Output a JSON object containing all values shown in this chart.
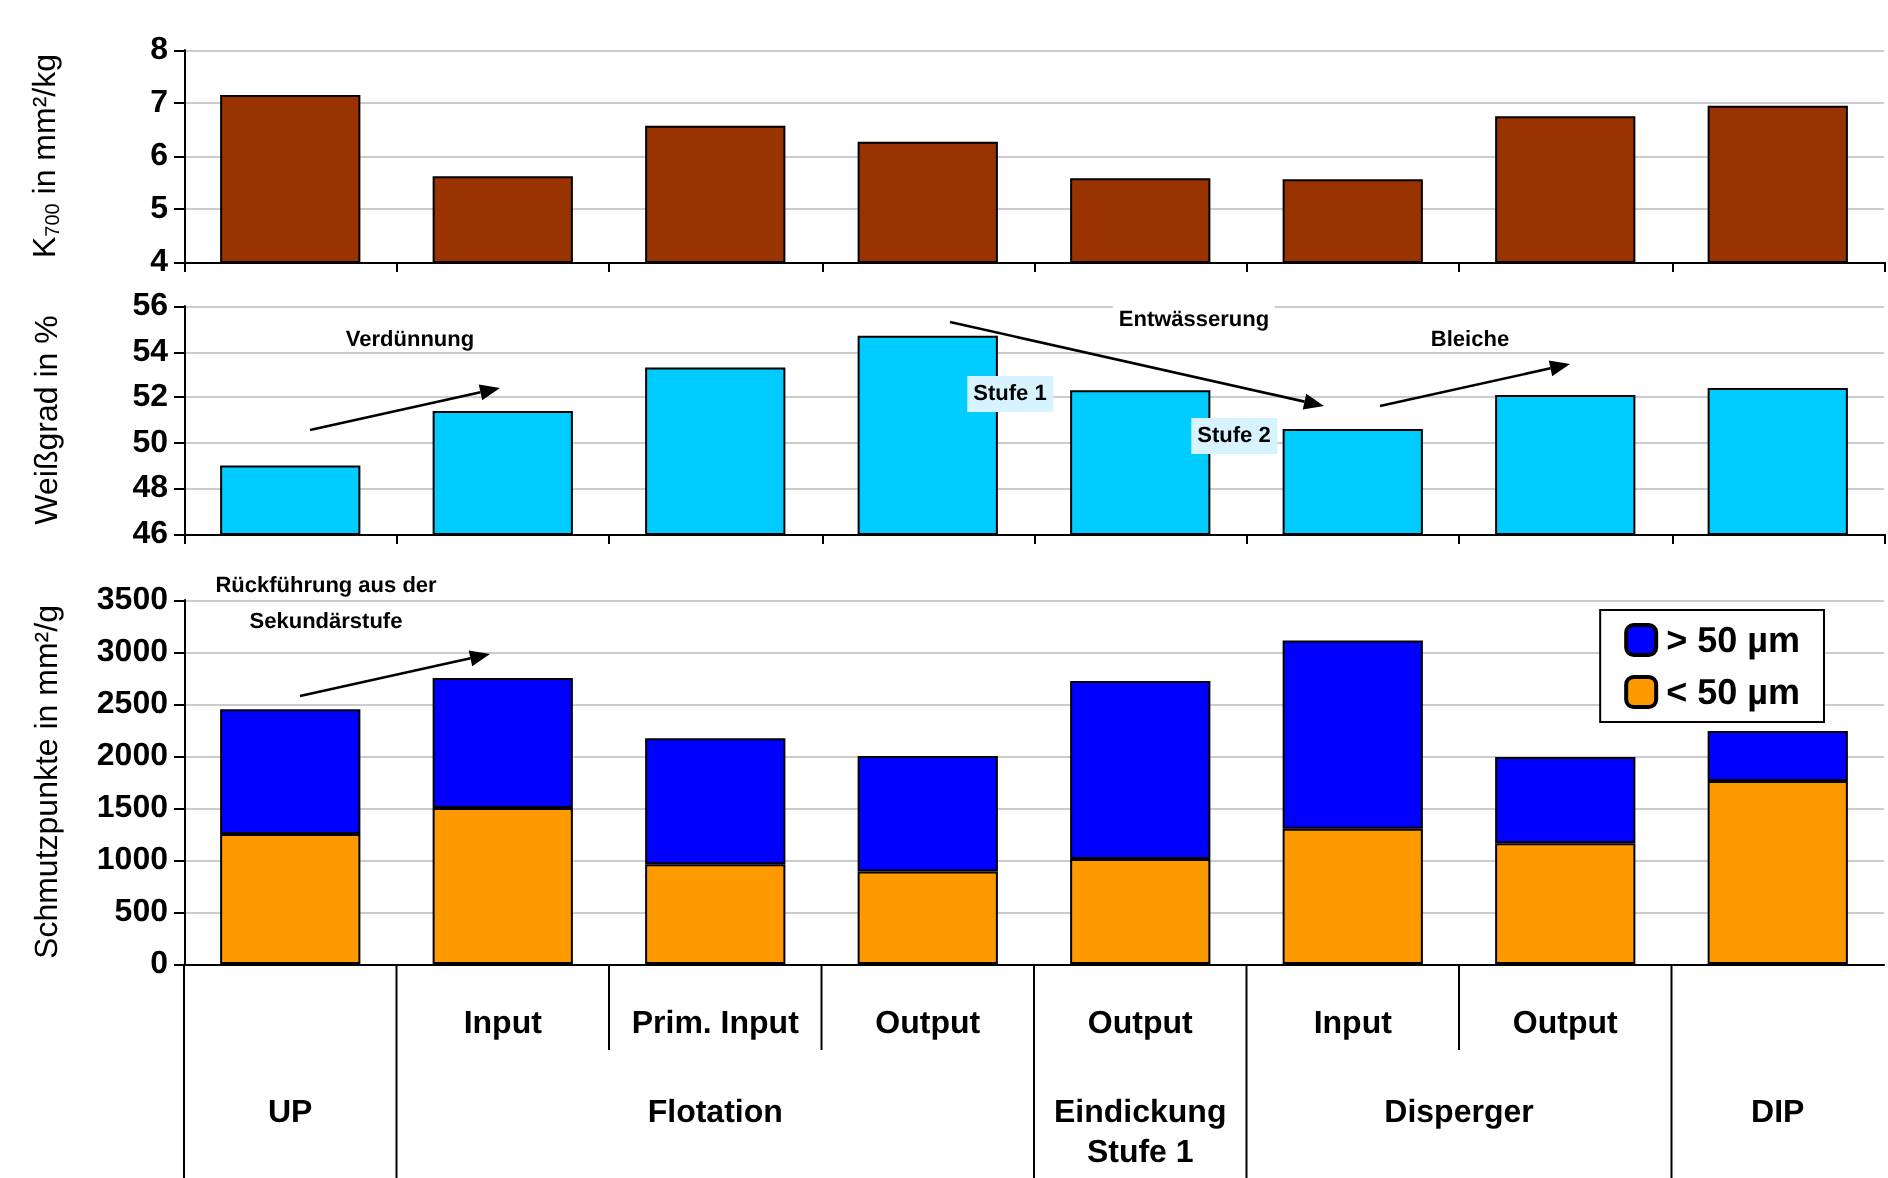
{
  "chart_data": [
    {
      "type": "bar",
      "ylabel": "K$_{700}$ in mm²/kg",
      "values": [
        7.15,
        5.62,
        6.57,
        6.27,
        5.58,
        5.56,
        6.75,
        6.95
      ],
      "color": "#993300",
      "ylim": [
        4,
        8
      ],
      "yticks": [
        4,
        5,
        6,
        7,
        8
      ],
      "grid": "y",
      "tick_labels": "y"
    },
    {
      "type": "bar",
      "ylabel": "Weißgrad in %",
      "values": [
        49.0,
        51.4,
        53.3,
        54.7,
        52.3,
        50.6,
        52.1,
        52.4
      ],
      "color": "#00ccff",
      "ylim": [
        46,
        56
      ],
      "yticks": [
        46,
        48,
        50,
        52,
        54,
        56
      ],
      "grid": "y",
      "tick_labels": "y",
      "annotations": [
        "Verdünnung",
        "Entwässerung",
        "Bleiche",
        "Stufe 1",
        "Stufe 2"
      ]
    },
    {
      "type": "bar",
      "ylabel": "Schmutzpunkte in mm²/g",
      "categories": [
        null,
        "Input",
        "Prim. Input",
        "Output",
        "Output",
        "Input",
        "Output",
        null
      ],
      "stacked": true,
      "series": [
        {
          "name": "< 50 µm",
          "color": "#ff9900",
          "values": [
            1250,
            1500,
            960,
            890,
            1010,
            1300,
            1160,
            1760
          ]
        },
        {
          "name": "> 50 µm",
          "color": "#0000ff",
          "values": [
            1200,
            1250,
            1210,
            1110,
            1710,
            1810,
            830,
            480
          ]
        }
      ],
      "ylim": [
        0,
        3500
      ],
      "yticks": [
        0,
        500,
        1000,
        1500,
        2000,
        2500,
        3000,
        3500
      ],
      "grid": "y",
      "legend": "top right",
      "annotations": [
        "Rückführung aus der Sekundärstufe",
        "UP",
        "Flotation",
        "Eindickung Stufe 1",
        "Disperger",
        "DIP"
      ]
    }
  ]
}
